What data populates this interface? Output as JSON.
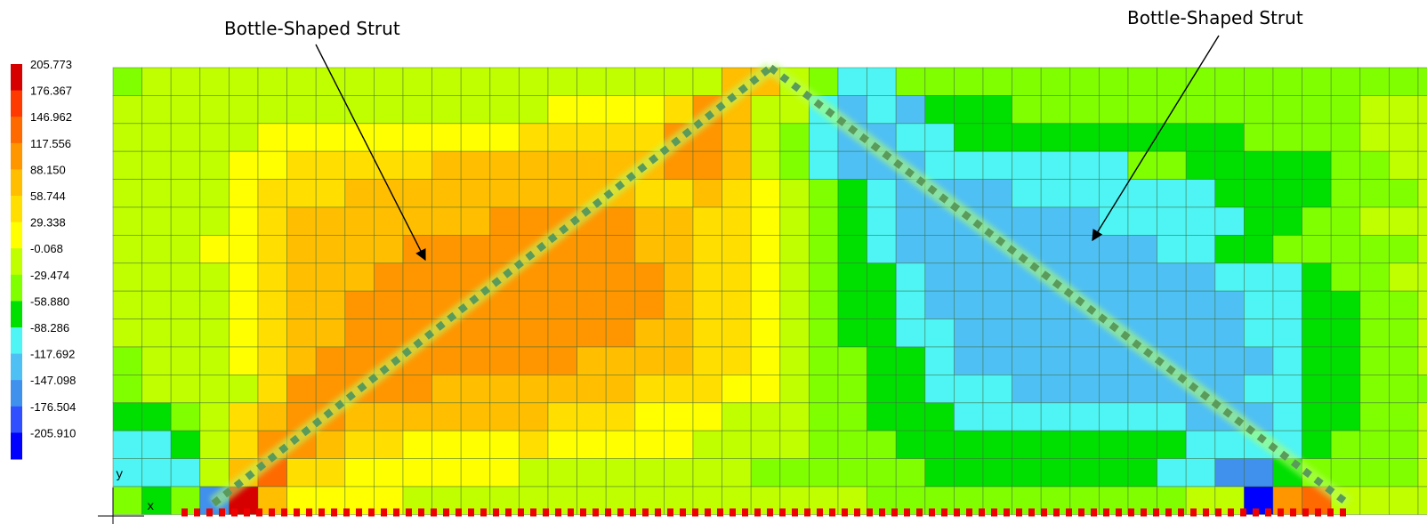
{
  "legend": {
    "labels": [
      "205.773",
      "176.367",
      "146.962",
      "117.556",
      "88.150",
      "58.744",
      "29.338",
      "-0.068",
      "-29.474",
      "-58.880",
      "-88.286",
      "-117.692",
      "-147.098",
      "-176.504",
      "-205.910"
    ],
    "colors": [
      "#d60000",
      "#ff3a00",
      "#ff6a00",
      "#ff9600",
      "#ffbe00",
      "#ffde00",
      "#ffff00",
      "#c0ff00",
      "#80ff00",
      "#00e000",
      "#4ff4f4",
      "#4fc0f4",
      "#4090ee",
      "#3050ff",
      "#0000ff"
    ]
  },
  "annotations": {
    "left_label": "Bottle-Shaped Strut",
    "right_label": "Bottle-Shaped Strut"
  },
  "axes": {
    "y": "y",
    "x": "x"
  },
  "palette": {
    "A": "#ffff00",
    "B": "#ffde00",
    "C": "#ffbe00",
    "D": "#ff9600",
    "E": "#ff6a00",
    "F": "#d60000",
    "G": "#c0ff00",
    "H": "#80ff00",
    "I": "#00e000",
    "J": "#4ff4f4",
    "K": "#4fc0f4",
    "L": "#4090ee",
    "M": "#3050ff",
    "N": "#0000ff",
    "O": "#00c000"
  },
  "contour_rows": [
    "HGGGGGGGGGGGGGGGGGGGGCCGHJJHHHHHHHHHHHHHHHHHHHHHH",
    "GGGGGGGGGGGGGGGAAAABDCGGJKJKIIIHHHHHHHHHHHHGGGGGG",
    "GGGGGAAAAAAAAABBBBBDDCGHJKKJJIIIIIIIIIIHHHHGGGGGG",
    "GGGGAABBBBBCCCCCCCCDDCGHJKKKJJJJJJJHHIIIIIHHGGGGG",
    "GGGGABBBCCCCCCCCCCBBCBAGHIJKKKKJJJJJJJIIIIHHHGGGG",
    "GGGGABCCCCCCCDDDDDCCBBAGHIJKKKKKKKJJJJJIIHHGGGGGG",
    "GGGAABCCCCDDDDDDDDCCBBAGHIJKKKKKKKKKJJIIHHHHHGGGG",
    "GGGGABCCCDDDDDDDDDDCBBAGHIIJKKKKKKKKKKJJJIHHGGGGG",
    "GGGGABCCDDDDDDDDDDDCBBAGHIIJKKKKKKKKKKKJJIIHHGGGG",
    "GGGGABCCDDDDDDDDDDCCBBAGHIIJJKKKKKKKKKKJJIIHHGGGG",
    "HGGGABCDDDDDDDDDCCCCBBAGHHIIJKKKKKKKKKKKJIIHHGGGG",
    "HGGGGBDDDDDCCCCCCCBBBAAGHHIIJJJKKKKKKKKJJIIHHHGGG",
    "IIHGBCDDCCCCCCCBBBAAAGGGHHIIIJJJJJJJJKKKJIIHHGAAG",
    "JJIGBDDCBBAAAABAAAAAGGGGHHHIIIIIIIIIIJJJJIHHHGBCB",
    "JJJGCEBBAAAAAAGGGGGGGGHHHHHHIIIIIIIIJJLLIHHHHGBCB",
    "HIHLFCAAAAGGGGGGGGGGGGGGGGHHHHHHHHHHHGGNDEGGGGGAB"
  ]
}
